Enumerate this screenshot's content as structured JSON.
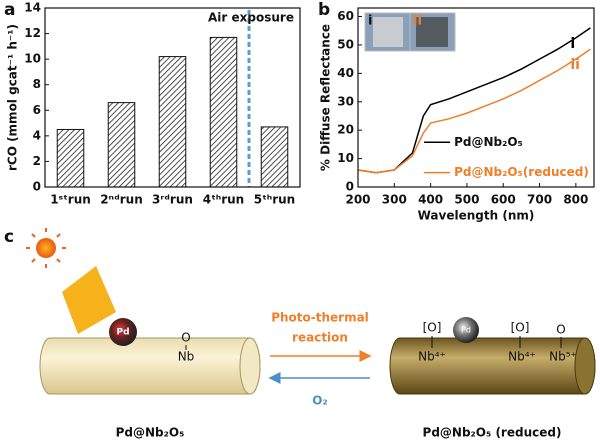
{
  "panels": {
    "a": "a",
    "b": "b",
    "c": "c"
  },
  "chart_data": [
    {
      "type": "bar",
      "ylabel": "rCO (mmol gcat⁻¹ h⁻¹)",
      "categories": [
        "1ˢᵗrun",
        "2ⁿᵈrun",
        "3ʳᵈrun",
        "4ᵗʰrun",
        "5ᵗʰrun"
      ],
      "values": [
        4.5,
        6.6,
        10.2,
        11.7,
        4.7
      ],
      "ylim": [
        0,
        14
      ],
      "yticks": [
        0,
        2,
        4,
        6,
        8,
        10,
        12,
        14
      ],
      "annotation": "Air exposure"
    },
    {
      "type": "line",
      "xlabel": "Wavelength (nm)",
      "ylabel": "% Diffuse Reflectance",
      "x": [
        200,
        250,
        300,
        350,
        380,
        400,
        450,
        500,
        550,
        600,
        650,
        700,
        750,
        800,
        840
      ],
      "series": [
        {
          "name": "Pd@Nb₂O₅",
          "label": "i",
          "color": "#000000",
          "values": [
            6,
            5,
            6,
            12,
            25,
            29,
            31,
            33.5,
            36,
            38.5,
            41.5,
            45,
            48.5,
            52.5,
            56
          ]
        },
        {
          "name": "Pd@Nb₂O₅(reduced)",
          "label": "ii",
          "color": "#f07f2a",
          "values": [
            6,
            5,
            6,
            11,
            19,
            22.5,
            24,
            26,
            28.5,
            31,
            34,
            37.5,
            41,
            45,
            48.5
          ]
        }
      ],
      "xlim": [
        200,
        850
      ],
      "xticks": [
        200,
        300,
        400,
        500,
        600,
        700,
        800
      ],
      "ylim": [
        0,
        63
      ],
      "yticks": [
        0,
        10,
        20,
        30,
        40,
        50,
        60
      ],
      "inset_labels": [
        "i",
        "ii"
      ]
    }
  ],
  "diagram": {
    "left": {
      "particle": "Pd",
      "oxygen": "O",
      "niobium": "Nb",
      "caption": "Pd@Nb₂O₅"
    },
    "right": {
      "particle": "Pd",
      "vacancy1": "[O]",
      "nb1": "Nb⁴⁺",
      "vacancy2": "[O]",
      "nb2": "Nb⁴⁺",
      "oxygen": "O",
      "nb3": "Nb⁵⁺",
      "caption": "Pd@Nb₂O₅ (reduced)"
    },
    "forward": [
      "Photo-thermal",
      "reaction"
    ],
    "backward": "O₂"
  }
}
